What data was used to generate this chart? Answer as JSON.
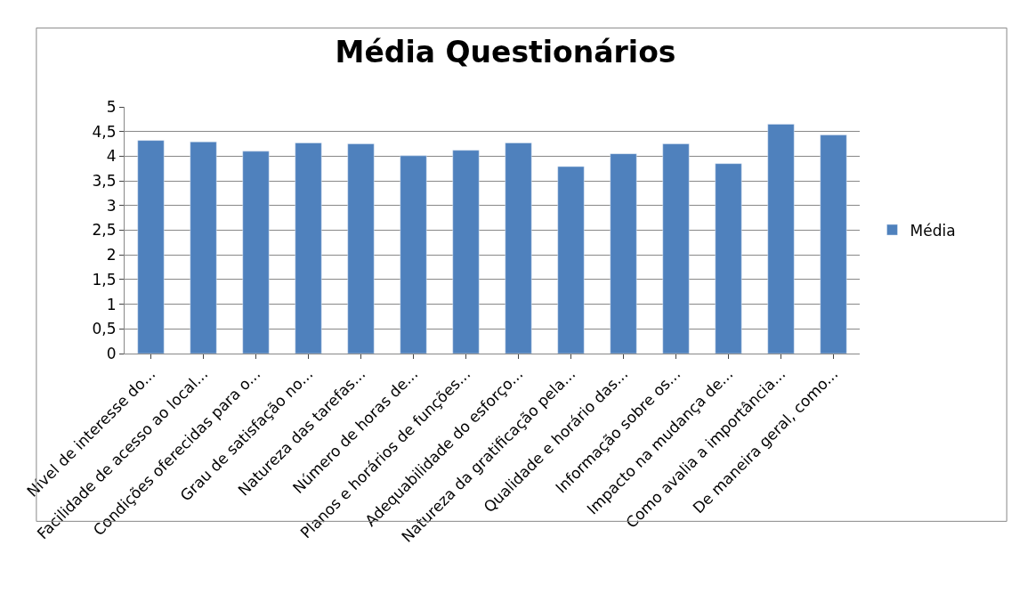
{
  "chart_data": {
    "type": "bar",
    "title": "Média Questionários",
    "categories": [
      "Nível de interesse do...",
      "Facilidade de acesso ao local...",
      "Condições oferecidas para o...",
      "Grau de satisfação no...",
      "Natureza das tarefas...",
      "Número de horas de...",
      "Planos e horários de funções...",
      "Adequabilidade do esforço...",
      "Natureza da gratificação pela...",
      "Qualidade e horário das...",
      "Informação sobre os...",
      "Impacto na mudança de...",
      "Como avalia a importância...",
      "De maneira geral, como..."
    ],
    "series": [
      {
        "name": "Média",
        "color": "#4f81bd",
        "values": [
          4.32,
          4.29,
          4.1,
          4.27,
          4.25,
          4.01,
          4.12,
          4.27,
          3.79,
          4.05,
          4.25,
          3.85,
          4.65,
          4.43
        ]
      }
    ],
    "ylim": [
      0,
      5
    ],
    "yticks": [
      0,
      {
        "value": 0.5,
        "label": "0,5"
      },
      1,
      {
        "value": 1.5,
        "label": "1,5"
      },
      2,
      {
        "value": 2.5,
        "label": "2,5"
      },
      3,
      {
        "value": 3.5,
        "label": "3,5"
      },
      4,
      {
        "value": 4.5,
        "label": "4,5"
      },
      5
    ],
    "grid": "y",
    "legend": "right"
  }
}
